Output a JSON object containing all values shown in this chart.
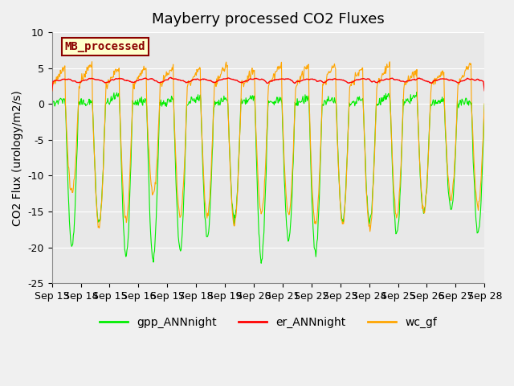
{
  "title": "Mayberry processed CO2 Fluxes",
  "ylabel": "CO2 Flux (urology/m2/s)",
  "ylim": [
    -25,
    10
  ],
  "yticks": [
    -25,
    -20,
    -15,
    -10,
    -5,
    0,
    5,
    10
  ],
  "x_tick_labels": [
    "Sep 13",
    "Sep 14",
    "Sep 15",
    "Sep 16",
    "Sep 17",
    "Sep 18",
    "Sep 19",
    "Sep 20",
    "Sep 21",
    "Sep 22",
    "Sep 23",
    "Sep 24",
    "Sep 25",
    "Sep 26",
    "Sep 27",
    "Sep 28"
  ],
  "bg_color": "#f0f0f0",
  "plot_bg_color": "#e8e8e8",
  "legend_labels": [
    "gpp_ANNnight",
    "er_ANNnight",
    "wc_gf"
  ],
  "legend_colors": [
    "#00ee00",
    "#ff0000",
    "#ffa500"
  ],
  "label_box_text": "MB_processed",
  "label_box_text_color": "#8b0000",
  "label_box_bg": "#ffffcc",
  "label_box_border": "#8b0000",
  "gpp_color": "#00ee00",
  "er_color": "#ff0000",
  "wc_color": "#ffa500",
  "n_days": 16,
  "points_per_day": 48,
  "title_fontsize": 13,
  "axis_fontsize": 10,
  "tick_fontsize": 9
}
